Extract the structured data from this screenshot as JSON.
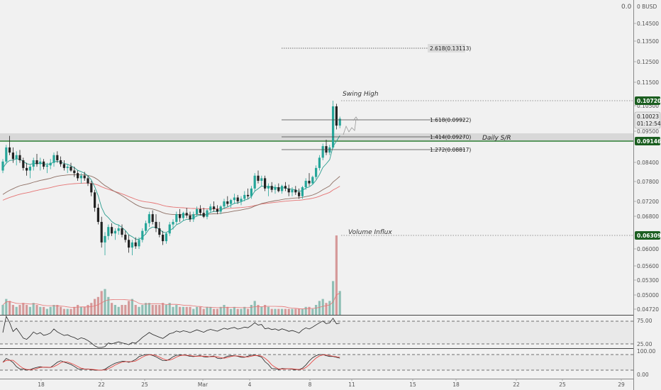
{
  "chart_data": {
    "type": "candlestick",
    "currency": "BUSD",
    "price_axis": {
      "top_label": "0.0",
      "currency_label": "0 BUSD",
      "ticks": [
        "0.14500",
        "0.13500",
        "0.12500",
        "0.11500",
        "0.10500",
        "0.09500",
        "0.08400",
        "0.07800",
        "0.07200",
        "0.06800",
        "0.06000",
        "0.05600",
        "0.05300",
        "0.05000",
        "0.04720"
      ]
    },
    "date_axis": {
      "ticks": [
        "18",
        "22",
        "25",
        "Mar",
        "4",
        "8",
        "11",
        "15",
        "18",
        "22",
        "25",
        "29"
      ]
    },
    "current_price": {
      "value": "0.10023",
      "countdown": "01:12:54"
    },
    "price_tags": [
      {
        "label": "0.10720",
        "color": "#1b5e20"
      },
      {
        "label": "0.09146",
        "color": "#1b5e20"
      },
      {
        "label": "0.06309",
        "color": "#1b5e20"
      }
    ],
    "fib_levels": [
      {
        "label": "2.618(0.13113)",
        "price": 0.13113
      },
      {
        "label": "1.618(0.09922)",
        "price": 0.09922
      },
      {
        "label": "1.414(0.09270)",
        "price": 0.0927
      },
      {
        "label": "1.272(0.08817)",
        "price": 0.08817
      }
    ],
    "annotations": {
      "swing_high": "Swing High",
      "daily_sr": "Daily S/R",
      "volume_influx": "Volume Influx"
    },
    "rsi_pane": {
      "levels": [
        "75.00",
        "25.00"
      ]
    },
    "stoch_pane": {
      "levels": [
        "100.00",
        "0.00"
      ]
    },
    "colors": {
      "up": "#26a69a",
      "down": "#222222",
      "vol_up": "#8fbfb5",
      "vol_down": "#d59a9a",
      "ema_fast": "#2a9d8f",
      "ema_mid": "#8d6e63",
      "ema_slow": "#e57373",
      "sr_line": "#2e7d32",
      "tag_bg": "#1b5e20"
    },
    "candles": [
      [
        0.08,
        0.0845,
        0.079,
        0.0835
      ],
      [
        0.0835,
        0.09,
        0.0825,
        0.089
      ],
      [
        0.089,
        0.0935,
        0.086,
        0.087
      ],
      [
        0.087,
        0.089,
        0.083,
        0.0845
      ],
      [
        0.0845,
        0.0875,
        0.082,
        0.086
      ],
      [
        0.086,
        0.088,
        0.083,
        0.084
      ],
      [
        0.084,
        0.085,
        0.08,
        0.081
      ],
      [
        0.081,
        0.083,
        0.078,
        0.08
      ],
      [
        0.08,
        0.0825,
        0.077,
        0.0815
      ],
      [
        0.0815,
        0.085,
        0.08,
        0.084
      ],
      [
        0.084,
        0.0865,
        0.0815,
        0.0825
      ],
      [
        0.0825,
        0.085,
        0.08,
        0.0835
      ],
      [
        0.0835,
        0.0845,
        0.0805,
        0.0815
      ],
      [
        0.0815,
        0.083,
        0.079,
        0.082
      ],
      [
        0.082,
        0.0845,
        0.0805,
        0.083
      ],
      [
        0.083,
        0.087,
        0.0815,
        0.086
      ],
      [
        0.086,
        0.0875,
        0.083,
        0.084
      ],
      [
        0.084,
        0.0855,
        0.0815,
        0.0825
      ],
      [
        0.0825,
        0.084,
        0.08,
        0.081
      ],
      [
        0.081,
        0.0825,
        0.079,
        0.0815
      ],
      [
        0.0815,
        0.083,
        0.0795,
        0.08
      ],
      [
        0.08,
        0.0815,
        0.0775,
        0.079
      ],
      [
        0.079,
        0.08,
        0.076,
        0.077
      ],
      [
        0.077,
        0.079,
        0.075,
        0.078
      ],
      [
        0.078,
        0.0795,
        0.076,
        0.077
      ],
      [
        0.077,
        0.078,
        0.074,
        0.075
      ],
      [
        0.075,
        0.076,
        0.07,
        0.0715
      ],
      [
        0.0715,
        0.0725,
        0.064,
        0.0655
      ],
      [
        0.0655,
        0.067,
        0.059,
        0.06
      ],
      [
        0.06,
        0.062,
        0.05,
        0.052
      ],
      [
        0.052,
        0.056,
        0.047,
        0.0545
      ],
      [
        0.0545,
        0.059,
        0.053,
        0.058
      ],
      [
        0.058,
        0.0595,
        0.0545,
        0.0555
      ],
      [
        0.0555,
        0.0575,
        0.053,
        0.0565
      ],
      [
        0.0565,
        0.059,
        0.055,
        0.0575
      ],
      [
        0.0575,
        0.059,
        0.054,
        0.055
      ],
      [
        0.055,
        0.0565,
        0.052,
        0.053
      ],
      [
        0.053,
        0.055,
        0.048,
        0.05
      ],
      [
        0.05,
        0.053,
        0.047,
        0.052
      ],
      [
        0.052,
        0.054,
        0.0495,
        0.0505
      ],
      [
        0.0505,
        0.054,
        0.0495,
        0.053
      ],
      [
        0.053,
        0.0575,
        0.052,
        0.0565
      ],
      [
        0.0565,
        0.0605,
        0.055,
        0.0595
      ],
      [
        0.0595,
        0.064,
        0.058,
        0.063
      ],
      [
        0.063,
        0.0645,
        0.059,
        0.06
      ],
      [
        0.06,
        0.063,
        0.056,
        0.0575
      ],
      [
        0.0575,
        0.06,
        0.054,
        0.055
      ],
      [
        0.055,
        0.0565,
        0.051,
        0.0525
      ],
      [
        0.0525,
        0.056,
        0.0515,
        0.0555
      ],
      [
        0.0555,
        0.06,
        0.0545,
        0.059
      ],
      [
        0.059,
        0.061,
        0.057,
        0.06
      ],
      [
        0.06,
        0.064,
        0.059,
        0.063
      ],
      [
        0.063,
        0.065,
        0.06,
        0.0615
      ],
      [
        0.0615,
        0.064,
        0.0605,
        0.0635
      ],
      [
        0.0635,
        0.0655,
        0.0615,
        0.0625
      ],
      [
        0.0625,
        0.064,
        0.06,
        0.061
      ],
      [
        0.061,
        0.064,
        0.06,
        0.063
      ],
      [
        0.063,
        0.066,
        0.062,
        0.065
      ],
      [
        0.065,
        0.0665,
        0.0625,
        0.0635
      ],
      [
        0.0635,
        0.0655,
        0.0615,
        0.062
      ],
      [
        0.062,
        0.065,
        0.061,
        0.0645
      ],
      [
        0.0645,
        0.067,
        0.0635,
        0.066
      ],
      [
        0.066,
        0.068,
        0.064,
        0.065
      ],
      [
        0.065,
        0.0665,
        0.063,
        0.064
      ],
      [
        0.064,
        0.0665,
        0.063,
        0.066
      ],
      [
        0.066,
        0.069,
        0.065,
        0.068
      ],
      [
        0.068,
        0.07,
        0.066,
        0.067
      ],
      [
        0.067,
        0.069,
        0.0655,
        0.0685
      ],
      [
        0.0685,
        0.071,
        0.067,
        0.0695
      ],
      [
        0.0695,
        0.0705,
        0.067,
        0.068
      ],
      [
        0.068,
        0.07,
        0.0665,
        0.069
      ],
      [
        0.069,
        0.072,
        0.068,
        0.0705
      ],
      [
        0.0705,
        0.073,
        0.069,
        0.07
      ],
      [
        0.07,
        0.074,
        0.069,
        0.073
      ],
      [
        0.073,
        0.079,
        0.072,
        0.078
      ],
      [
        0.078,
        0.08,
        0.075,
        0.076
      ],
      [
        0.076,
        0.078,
        0.074,
        0.077
      ],
      [
        0.077,
        0.078,
        0.072,
        0.073
      ],
      [
        0.073,
        0.075,
        0.07,
        0.074
      ],
      [
        0.074,
        0.0755,
        0.0715,
        0.0725
      ],
      [
        0.0725,
        0.0745,
        0.071,
        0.0735
      ],
      [
        0.0735,
        0.075,
        0.0715,
        0.072
      ],
      [
        0.072,
        0.0745,
        0.071,
        0.074
      ],
      [
        0.074,
        0.0755,
        0.072,
        0.073
      ],
      [
        0.073,
        0.0745,
        0.07,
        0.0715
      ],
      [
        0.0715,
        0.0735,
        0.07,
        0.0725
      ],
      [
        0.0725,
        0.074,
        0.0705,
        0.0715
      ],
      [
        0.0715,
        0.073,
        0.069,
        0.07
      ],
      [
        0.07,
        0.074,
        0.069,
        0.0735
      ],
      [
        0.0735,
        0.077,
        0.0725,
        0.076
      ],
      [
        0.076,
        0.079,
        0.074,
        0.075
      ],
      [
        0.075,
        0.078,
        0.0745,
        0.0775
      ],
      [
        0.0775,
        0.082,
        0.0765,
        0.081
      ],
      [
        0.081,
        0.086,
        0.08,
        0.085
      ],
      [
        0.085,
        0.0905,
        0.084,
        0.0895
      ],
      [
        0.0895,
        0.092,
        0.086,
        0.087
      ],
      [
        0.087,
        0.09,
        0.086,
        0.089
      ],
      [
        0.089,
        0.1072,
        0.0885,
        0.105
      ],
      [
        0.105,
        0.106,
        0.096,
        0.0975
      ],
      [
        0.0975,
        0.101,
        0.0965,
        0.1002
      ]
    ],
    "volume": [
      0.5,
      0.8,
      0.7,
      0.5,
      0.4,
      0.5,
      0.6,
      0.5,
      0.4,
      0.6,
      0.5,
      0.4,
      0.4,
      0.3,
      0.4,
      0.5,
      0.5,
      0.4,
      0.3,
      0.3,
      0.3,
      0.4,
      0.5,
      0.4,
      0.4,
      0.5,
      0.6,
      0.8,
      0.9,
      1.2,
      1.3,
      0.9,
      0.6,
      0.5,
      0.4,
      0.5,
      0.5,
      0.7,
      0.8,
      0.5,
      0.4,
      0.5,
      0.6,
      0.6,
      0.5,
      0.5,
      0.5,
      0.6,
      0.5,
      0.6,
      0.4,
      0.5,
      0.4,
      0.4,
      0.4,
      0.4,
      0.3,
      0.4,
      0.4,
      0.3,
      0.4,
      0.4,
      0.3,
      0.3,
      0.4,
      0.5,
      0.4,
      0.3,
      0.4,
      0.3,
      0.3,
      0.4,
      0.3,
      0.5,
      0.7,
      0.5,
      0.4,
      0.5,
      0.4,
      0.3,
      0.3,
      0.3,
      0.3,
      0.3,
      0.3,
      0.3,
      0.3,
      0.3,
      0.3,
      0.4,
      0.4,
      0.3,
      0.5,
      0.7,
      0.8,
      0.6,
      0.7,
      1.7,
      4.0,
      1.2
    ]
  }
}
